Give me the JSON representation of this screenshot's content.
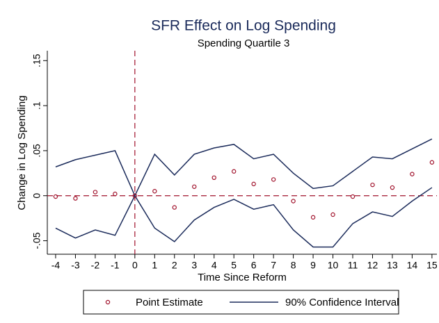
{
  "chart_data": {
    "type": "scatter",
    "title": "SFR Effect on Log Spending",
    "subtitle": "Spending Quartile 3",
    "x_label": "Time Since Reform",
    "y_label": "Change in Log Spending",
    "x": [
      -4,
      -3,
      -2,
      -1,
      0,
      1,
      2,
      3,
      4,
      5,
      6,
      7,
      8,
      9,
      10,
      11,
      12,
      13,
      14,
      15
    ],
    "series": [
      {
        "name": "Point Estimate",
        "color": "#a0102a",
        "values": [
          -0.001,
          -0.003,
          0.004,
          0.002,
          0,
          0.005,
          -0.013,
          0.01,
          0.02,
          0.027,
          0.013,
          0.018,
          -0.006,
          -0.024,
          -0.021,
          -0.001,
          0.012,
          0.009,
          0.024,
          0.037
        ]
      },
      {
        "name": "90% Confidence Interval",
        "color": "#1a2a5a",
        "upper": [
          0.032,
          0.04,
          0.045,
          0.05,
          0,
          0.046,
          0.023,
          0.046,
          0.053,
          0.057,
          0.041,
          0.046,
          0.025,
          0.008,
          0.011,
          0.027,
          0.043,
          0.041,
          0.052,
          0.063
        ],
        "lower": [
          -0.036,
          -0.047,
          -0.038,
          -0.044,
          0,
          -0.036,
          -0.051,
          -0.027,
          -0.013,
          -0.004,
          -0.015,
          -0.01,
          -0.038,
          -0.057,
          -0.057,
          -0.031,
          -0.018,
          -0.023,
          -0.006,
          0.009
        ]
      }
    ],
    "xlim": [
      -4.42,
      15.25
    ],
    "ylim": [
      -0.065,
      0.161
    ],
    "xticks": [
      -4,
      -3,
      -2,
      -1,
      0,
      1,
      2,
      3,
      4,
      5,
      6,
      7,
      8,
      9,
      10,
      11,
      12,
      13,
      14,
      15
    ],
    "yticks": [
      {
        "value": -0.05,
        "label": "-.05"
      },
      0,
      {
        "value": 0.05,
        "label": ".05"
      },
      {
        "value": 0.1,
        "label": ".1"
      },
      {
        "value": 0.15,
        "label": ".15"
      }
    ],
    "hline": 0,
    "vline": 0,
    "ref_color": "#a0102a",
    "grid": false,
    "legend": "bottom"
  }
}
